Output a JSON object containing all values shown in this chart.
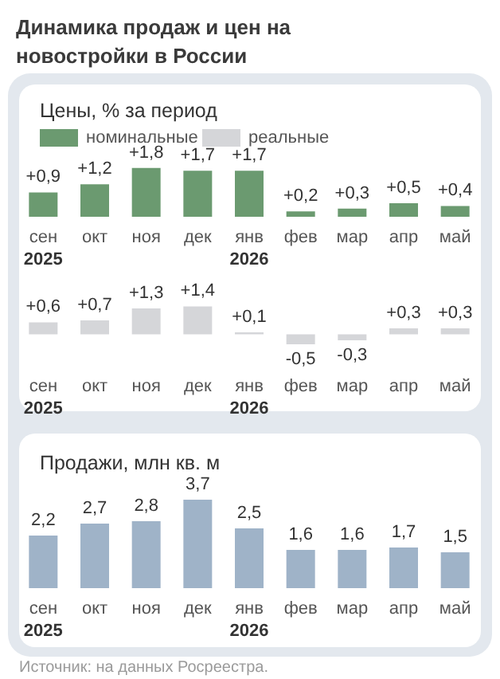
{
  "chart_data": [
    {
      "type": "bar",
      "title": "Динамика продаж и цен на новостройки в России",
      "subtitle": "Цены, % за период",
      "legend": "top left",
      "categories": [
        "сен\n2025",
        "окт",
        "ноя",
        "дек",
        "янв\n2026",
        "фев",
        "мар",
        "апр",
        "май"
      ],
      "series": [
        {
          "name": "номинальные",
          "color": "#6b9a70",
          "values": [
            0.9,
            1.2,
            1.8,
            1.7,
            1.7,
            0.2,
            0.3,
            0.5,
            0.4
          ],
          "value_labels": [
            "+0,9",
            "+1,2",
            "+1,8",
            "+1,7",
            "+1,7",
            "+0,2",
            "+0,3",
            "+0,5",
            "+0,4"
          ]
        }
      ]
    },
    {
      "type": "bar",
      "legend": "top",
      "categories": [
        "сен\n2025",
        "окт",
        "ноя",
        "дек",
        "янв\n2026",
        "фев",
        "мар",
        "апр",
        "май"
      ],
      "series": [
        {
          "name": "реальные",
          "color": "#d5d6d9",
          "values": [
            0.6,
            0.7,
            1.3,
            1.4,
            0.1,
            -0.5,
            -0.3,
            0.3,
            0.3
          ],
          "value_labels": [
            "+0,6",
            "+0,7",
            "+1,3",
            "+1,4",
            "+0,1",
            "-0,5",
            "-0,3",
            "+0,3",
            "+0,3"
          ]
        }
      ]
    },
    {
      "type": "bar",
      "title": "Продажи, млн кв. м",
      "categories": [
        "сен\n2025",
        "окт",
        "ноя",
        "дек",
        "янв\n2026",
        "фев",
        "мар",
        "апр",
        "май"
      ],
      "values": [
        2.2,
        2.7,
        2.8,
        3.7,
        2.5,
        1.6,
        1.6,
        1.7,
        1.5
      ],
      "color": "#9fb3c8",
      "value_labels": [
        "2,2",
        "2,7",
        "2,8",
        "3,7",
        "2,5",
        "1,6",
        "1,6",
        "1,7",
        "1,5"
      ],
      "annotations": [
        "Источник: на данных Росреестра."
      ]
    }
  ]
}
